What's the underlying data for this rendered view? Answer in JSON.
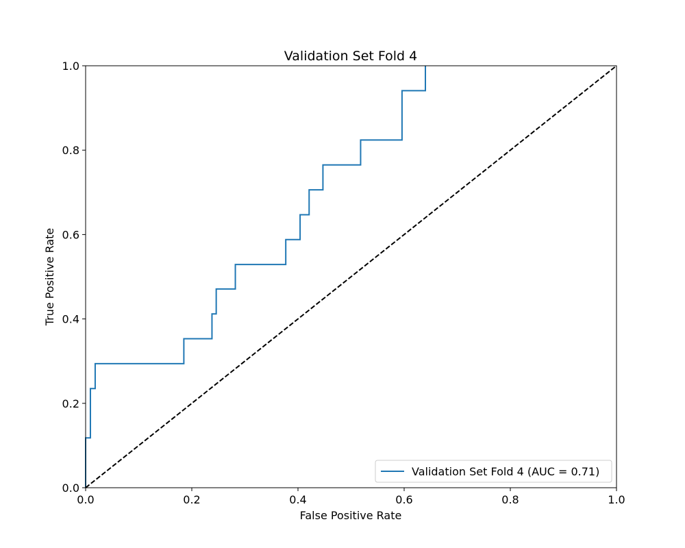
{
  "chart_data": {
    "type": "line",
    "title": "Validation Set Fold 4",
    "xlabel": "False Positive Rate",
    "ylabel": "True Positive Rate",
    "xlim": [
      0.0,
      1.0
    ],
    "ylim": [
      0.0,
      1.0
    ],
    "xticks": [
      "0.0",
      "0.2",
      "0.4",
      "0.6",
      "0.8",
      "1.0"
    ],
    "yticks": [
      "0.0",
      "0.2",
      "0.4",
      "0.6",
      "0.8",
      "1.0"
    ],
    "grid": false,
    "legend_position": "lower-right",
    "series": [
      {
        "name": "Validation Set Fold 4 (AUC = 0.71)",
        "color": "#1f77b4",
        "style": "step",
        "x": [
          0.0,
          0.0,
          0.009,
          0.009,
          0.018,
          0.018,
          0.185,
          0.185,
          0.238,
          0.238,
          0.246,
          0.246,
          0.282,
          0.282,
          0.377,
          0.377,
          0.404,
          0.404,
          0.421,
          0.421,
          0.447,
          0.447,
          0.518,
          0.518,
          0.596,
          0.596,
          0.64,
          0.64
        ],
        "y": [
          0.0,
          0.118,
          0.118,
          0.235,
          0.235,
          0.294,
          0.294,
          0.353,
          0.353,
          0.412,
          0.412,
          0.471,
          0.471,
          0.529,
          0.529,
          0.588,
          0.588,
          0.647,
          0.647,
          0.706,
          0.706,
          0.765,
          0.765,
          0.824,
          0.824,
          0.941,
          0.941,
          1.0
        ]
      },
      {
        "name": "",
        "color": "#000000",
        "style": "dashed",
        "x": [
          0.0,
          1.0
        ],
        "y": [
          0.0,
          1.0
        ]
      }
    ]
  }
}
